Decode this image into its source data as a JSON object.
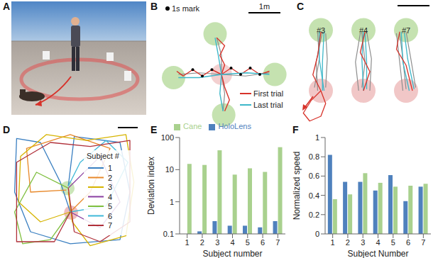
{
  "panel_labels": [
    "A",
    "B",
    "C",
    "D",
    "E",
    "F"
  ],
  "panel_b": {
    "mark_label": "1s mark",
    "scale_bar": {
      "label": "1m",
      "length": 1
    },
    "start": [
      0,
      0
    ],
    "targets": [
      [
        -0.2,
        1.27
      ],
      [
        -1.5,
        -0.1
      ],
      [
        1.67,
        0
      ],
      [
        0.07,
        -1.27
      ]
    ],
    "series": [
      {
        "name": "First trial",
        "color": "#d7322a",
        "paths": [
          [
            [
              0,
              0
            ],
            [
              0.1,
              0.3
            ],
            [
              -0.05,
              0.6
            ],
            [
              0.1,
              0.9
            ],
            [
              -0.15,
              1.15
            ]
          ],
          [
            [
              0,
              0
            ],
            [
              -0.3,
              0.15
            ],
            [
              -0.6,
              -0.05
            ],
            [
              -0.9,
              0.15
            ],
            [
              -1.2,
              -0.05
            ],
            [
              -1.4,
              0.1
            ]
          ],
          [
            [
              0,
              0
            ],
            [
              0.3,
              0.2
            ],
            [
              0.6,
              0
            ],
            [
              0.9,
              0.2
            ],
            [
              1.2,
              0
            ],
            [
              1.5,
              0.1
            ]
          ],
          [
            [
              0,
              0
            ],
            [
              0.1,
              -0.4
            ],
            [
              0.25,
              -0.8
            ],
            [
              0.1,
              -1.15
            ]
          ]
        ]
      },
      {
        "name": "Last trial",
        "color": "#3db7c9",
        "paths": [
          [
            [
              0,
              0
            ],
            [
              -0.1,
              0.6
            ],
            [
              -0.2,
              1.15
            ]
          ],
          [
            [
              0,
              0
            ],
            [
              -0.7,
              -0.1
            ],
            [
              -1.35,
              -0.1
            ]
          ],
          [
            [
              0,
              0
            ],
            [
              0.8,
              0.05
            ],
            [
              1.5,
              0
            ]
          ],
          [
            [
              0,
              0
            ],
            [
              -0.05,
              -0.6
            ],
            [
              0.05,
              -1.15
            ]
          ]
        ]
      }
    ],
    "other_trials": {
      "color": "#8c8c8c",
      "paths": [
        [
          [
            0,
            0
          ],
          [
            0,
            0.6
          ],
          [
            -0.15,
            1.15
          ]
        ],
        [
          [
            0,
            0
          ],
          [
            -0.7,
            0.05
          ],
          [
            -1.35,
            0
          ]
        ],
        [
          [
            0,
            0
          ],
          [
            0.75,
            -0.05
          ],
          [
            1.5,
            0.05
          ]
        ],
        [
          [
            0,
            0
          ],
          [
            0.1,
            -0.6
          ],
          [
            0.05,
            -1.15
          ]
        ]
      ]
    },
    "marks": [
      [
        0.3,
        0.2
      ],
      [
        0.6,
        0
      ],
      [
        0.9,
        0.2
      ],
      [
        1.2,
        0
      ],
      [
        -0.3,
        0.15
      ],
      [
        -0.6,
        -0.05
      ],
      [
        -0.9,
        0.15
      ]
    ]
  },
  "panel_c": {
    "scale_bar": {
      "length": 1
    },
    "start": [
      0,
      0
    ],
    "target": [
      0,
      1.9
    ],
    "subjects": [
      {
        "label": "#3",
        "first": [
          [
            [
              0,
              0
            ],
            [
              -0.25,
              0.5
            ],
            [
              -0.1,
              1.1
            ],
            [
              0,
              1.85
            ]
          ],
          [
            [
              0,
              0
            ],
            [
              -0.3,
              -0.3
            ],
            [
              -0.55,
              -0.7
            ],
            [
              -0.35,
              -0.95
            ],
            [
              0,
              -0.8
            ],
            [
              0.15,
              -0.4
            ],
            [
              0,
              0
            ]
          ]
        ],
        "last": [
          [
            [
              0.05,
              0
            ],
            [
              0.05,
              0.9
            ],
            [
              0.1,
              1.85
            ]
          ],
          [
            [
              0.1,
              0
            ],
            [
              -0.05,
              1
            ],
            [
              -0.05,
              1.85
            ]
          ]
        ],
        "other": [
          [
            [
              -0.1,
              0
            ],
            [
              -0.15,
              0.9
            ],
            [
              0.05,
              1.85
            ]
          ],
          [
            [
              0.15,
              0.1
            ],
            [
              0.2,
              1
            ],
            [
              0.15,
              1.8
            ]
          ],
          [
            [
              -0.2,
              0.1
            ],
            [
              -0.05,
              1
            ],
            [
              -0.1,
              1.8
            ]
          ]
        ]
      },
      {
        "label": "#4",
        "first": [
          [
            [
              0,
              0
            ],
            [
              0.2,
              0.6
            ],
            [
              -0.1,
              1.2
            ],
            [
              0.05,
              1.85
            ]
          ]
        ],
        "last": [
          [
            [
              0,
              0
            ],
            [
              -0.05,
              1
            ],
            [
              0,
              1.85
            ]
          ],
          [
            [
              0.1,
              0.05
            ],
            [
              0.1,
              0.9
            ],
            [
              0.05,
              1.8
            ]
          ]
        ],
        "other": [
          [
            [
              -0.15,
              0
            ],
            [
              -0.25,
              0.9
            ],
            [
              -0.1,
              1.8
            ]
          ],
          [
            [
              0.2,
              0
            ],
            [
              0.25,
              1
            ],
            [
              0.1,
              1.85
            ]
          ],
          [
            [
              -0.05,
              0.1
            ],
            [
              0.05,
              0.9
            ],
            [
              -0.05,
              1.8
            ]
          ]
        ]
      },
      {
        "label": "#7",
        "first": [
          [
            [
              0.2,
              0
            ],
            [
              0,
              0.8
            ],
            [
              -0.3,
              1.3
            ],
            [
              -0.2,
              1.85
            ]
          ]
        ],
        "last": [
          [
            [
              0.1,
              0
            ],
            [
              -0.1,
              0.9
            ],
            [
              -0.15,
              1.85
            ]
          ],
          [
            [
              0.25,
              0.05
            ],
            [
              0.05,
              1
            ],
            [
              -0.05,
              1.8
            ]
          ]
        ],
        "other": [
          [
            [
              -0.1,
              0
            ],
            [
              -0.2,
              0.9
            ],
            [
              -0.3,
              1.8
            ]
          ],
          [
            [
              0.3,
              0.1
            ],
            [
              0.15,
              1
            ],
            [
              0,
              1.85
            ]
          ],
          [
            [
              0,
              0.05
            ],
            [
              -0.1,
              1
            ],
            [
              -0.2,
              1.8
            ]
          ]
        ]
      }
    ]
  },
  "panel_d": {
    "legend_title": "Subject #",
    "scale_bar": {
      "length": 1
    },
    "target": [
      2.86,
      3.2
    ],
    "start": [
      3.04,
      1.96
    ],
    "series": [
      {
        "name": "1",
        "color": "#3a7fc1",
        "path": [
          [
            3,
            2
          ],
          [
            2.5,
            3.5
          ],
          [
            1.5,
            5.5
          ],
          [
            0.3,
            5.7
          ],
          [
            0.2,
            3
          ],
          [
            1,
            1
          ],
          [
            3,
            0.4
          ],
          [
            5.5,
            0.6
          ],
          [
            6,
            3
          ],
          [
            5.5,
            5.5
          ],
          [
            3.2,
            5.8
          ],
          [
            2.9,
            3.3
          ]
        ]
      },
      {
        "name": "2",
        "color": "#e8892b",
        "path": [
          [
            3,
            2
          ],
          [
            4,
            3
          ],
          [
            5,
            5.2
          ],
          [
            3,
            5.9
          ],
          [
            0.8,
            5.2
          ],
          [
            1,
            3
          ],
          [
            2.8,
            3.1
          ]
        ]
      },
      {
        "name": "3",
        "color": "#d6b400",
        "path": [
          [
            3,
            2
          ],
          [
            1.5,
            1.5
          ],
          [
            0.4,
            2.5
          ],
          [
            0.5,
            4.8
          ],
          [
            1.8,
            5.9
          ],
          [
            3.8,
            5.6
          ],
          [
            5.8,
            5.9
          ],
          [
            6.2,
            3.5
          ],
          [
            5.8,
            0.8
          ],
          [
            4,
            0.3
          ],
          [
            3.1,
            1.5
          ],
          [
            2.9,
            3
          ]
        ]
      },
      {
        "name": "4",
        "color": "#8a3fa0",
        "path": [
          [
            3,
            2
          ],
          [
            4.5,
            1.2
          ],
          [
            5.5,
            2.5
          ],
          [
            4.5,
            4.8
          ],
          [
            3.5,
            3.8
          ],
          [
            2.9,
            3.2
          ]
        ]
      },
      {
        "name": "5",
        "color": "#7fbf3f",
        "path": [
          [
            3,
            2
          ],
          [
            2,
            0.6
          ],
          [
            0.6,
            0.4
          ],
          [
            0.2,
            2
          ],
          [
            1.3,
            4
          ],
          [
            2.9,
            3.2
          ]
        ]
      },
      {
        "name": "6",
        "color": "#3fb8d8",
        "path": [
          [
            3,
            2
          ],
          [
            4.8,
            2.3
          ],
          [
            5.9,
            4.5
          ],
          [
            4.8,
            5.6
          ],
          [
            3.5,
            4.5
          ],
          [
            2.9,
            3.3
          ]
        ]
      },
      {
        "name": "7",
        "color": "#b0303a",
        "path": [
          [
            3,
            2
          ],
          [
            2.2,
            0.5
          ],
          [
            0.3,
            0.5
          ],
          [
            0.3,
            4.5
          ],
          [
            2,
            5.5
          ],
          [
            4,
            5.3
          ],
          [
            6,
            5.6
          ],
          [
            6,
            1.5
          ],
          [
            4.5,
            0.5
          ],
          [
            3.2,
            1
          ],
          [
            2.9,
            3.2
          ]
        ]
      }
    ]
  },
  "chart_data": [
    {
      "type": "bar",
      "categories": [
        "1",
        "2",
        "3",
        "4",
        "5",
        "6",
        "7"
      ],
      "x_label": "Subject number",
      "y_label": "Deviation index",
      "log": "y",
      "ylim": [
        0.1,
        100
      ],
      "yticks": [
        0.1,
        1,
        10,
        100
      ],
      "legend": "top",
      "series": [
        {
          "name": "HoloLens",
          "color": "#4f81bd",
          "values": [
            0.1,
            0.12,
            0.25,
            0.18,
            0.18,
            0.16,
            0.25
          ]
        },
        {
          "name": "Cane",
          "color": "#a9d18e",
          "values": [
            15,
            14,
            40,
            7,
            11,
            8.5,
            50
          ]
        }
      ]
    },
    {
      "type": "bar",
      "categories": [
        "1",
        "2",
        "3",
        "4",
        "5",
        "6",
        "7"
      ],
      "x_label": "Subject Number",
      "y_label": "Normalized speed",
      "ylim": [
        0,
        1
      ],
      "yticks": [
        0,
        0.2,
        0.4,
        0.6,
        0.8,
        1
      ],
      "series": [
        {
          "name": "HoloLens",
          "color": "#4f81bd",
          "values": [
            0.82,
            0.54,
            0.54,
            0.45,
            0.61,
            0.34,
            0.49
          ]
        },
        {
          "name": "Cane",
          "color": "#a9d18e",
          "values": [
            0.36,
            0.41,
            0.63,
            0.53,
            0.49,
            0.5,
            0.52
          ]
        }
      ]
    }
  ]
}
